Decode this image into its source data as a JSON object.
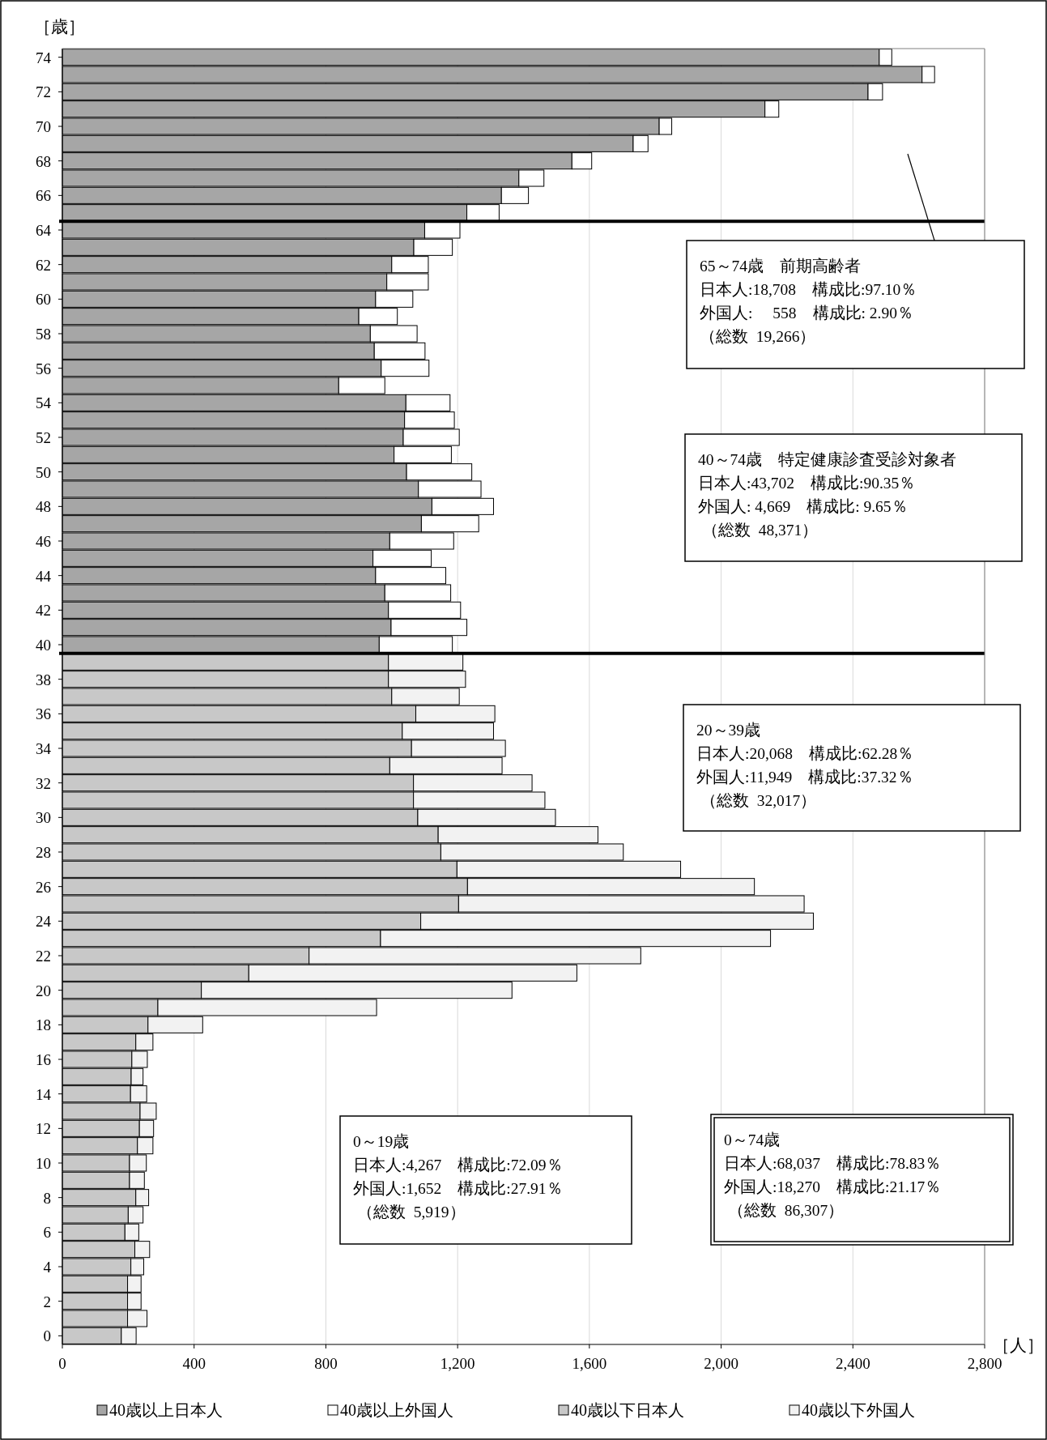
{
  "chart_data": {
    "type": "bar",
    "orientation": "horizontal",
    "stacked": true,
    "xlabel": "［人］",
    "ylabel": "［歳］",
    "x": [
      0,
      1,
      2,
      3,
      4,
      5,
      6,
      7,
      8,
      9,
      10,
      11,
      12,
      13,
      14,
      15,
      16,
      17,
      18,
      19,
      20,
      21,
      22,
      23,
      24,
      25,
      26,
      27,
      28,
      29,
      30,
      31,
      32,
      33,
      34,
      35,
      36,
      37,
      38,
      39,
      40,
      41,
      42,
      43,
      44,
      45,
      46,
      47,
      48,
      49,
      50,
      51,
      52,
      53,
      54,
      55,
      56,
      57,
      58,
      59,
      60,
      61,
      62,
      63,
      64,
      65,
      66,
      67,
      68,
      69,
      70,
      71,
      72,
      73,
      74
    ],
    "xlim": [
      0,
      2800
    ],
    "xticks": [
      0,
      400,
      800,
      {
        "value": 1200,
        "label": "1,200"
      },
      {
        "value": 1600,
        "label": "1,600"
      },
      {
        "value": 2000,
        "label": "2,000"
      },
      {
        "value": 2400,
        "label": "2,400"
      },
      {
        "value": 2800,
        "label": "2,800"
      }
    ],
    "ylim": [
      -0.5,
      74.5
    ],
    "yticks": [
      0,
      2,
      4,
      6,
      8,
      10,
      12,
      14,
      16,
      18,
      20,
      22,
      24,
      26,
      28,
      30,
      32,
      34,
      36,
      38,
      40,
      42,
      44,
      46,
      48,
      50,
      52,
      54,
      56,
      58,
      60,
      62,
      64,
      66,
      68,
      70,
      72,
      74
    ],
    "grid": "x",
    "legend": "bottom",
    "series": [
      {
        "name": "40歳以上日本人",
        "color": "#a6a6a6",
        "values": [
          null,
          null,
          null,
          null,
          null,
          null,
          null,
          null,
          null,
          null,
          null,
          null,
          null,
          null,
          null,
          null,
          null,
          null,
          null,
          null,
          null,
          null,
          null,
          null,
          null,
          null,
          null,
          null,
          null,
          null,
          null,
          null,
          null,
          null,
          null,
          null,
          null,
          null,
          null,
          null,
          962,
          998,
          990,
          979,
          951,
          943,
          994,
          1090,
          1122,
          1081,
          1045,
          1007,
          1035,
          1039,
          1043,
          839,
          968,
          947,
          935,
          900,
          951,
          985,
          1000,
          1067,
          1100,
          1228,
          1333,
          1386,
          1547,
          1733,
          1812,
          2133,
          2446,
          2610,
          2480
        ]
      },
      {
        "name": "40歳以上外国人",
        "color": "#ffffff",
        "values": [
          null,
          null,
          null,
          null,
          null,
          null,
          null,
          null,
          null,
          null,
          null,
          null,
          null,
          null,
          null,
          null,
          null,
          null,
          null,
          null,
          null,
          null,
          null,
          null,
          null,
          null,
          null,
          null,
          null,
          null,
          null,
          null,
          null,
          null,
          null,
          null,
          null,
          null,
          null,
          null,
          222,
          230,
          219,
          200,
          213,
          177,
          194,
          174,
          187,
          190,
          198,
          174,
          170,
          151,
          134,
          140,
          145,
          154,
          142,
          117,
          113,
          126,
          111,
          117,
          107,
          98,
          82,
          76,
          60,
          45,
          38,
          42,
          44,
          38,
          38
        ]
      },
      {
        "name": "40歳以下日本人",
        "color": "#c8c8c8",
        "values": [
          179,
          198,
          198,
          198,
          208,
          220,
          190,
          200,
          223,
          204,
          204,
          228,
          234,
          236,
          207,
          209,
          211,
          223,
          260,
          290,
          422,
          566,
          749,
          966,
          1088,
          1203,
          1230,
          1198,
          1149,
          1141,
          1079,
          1066,
          1066,
          994,
          1060,
          1032,
          1073,
          1000,
          990,
          990,
          null,
          null,
          null,
          null,
          null,
          null,
          null,
          null,
          null,
          null,
          null,
          null,
          null,
          null,
          null,
          null,
          null,
          null,
          null,
          null,
          null,
          null,
          null,
          null,
          null,
          null,
          null,
          null,
          null,
          null,
          null,
          null,
          null,
          null,
          null
        ]
      },
      {
        "name": "40歳以下外国人",
        "color": "#f2f2f2",
        "values": [
          45,
          59,
          41,
          41,
          39,
          45,
          42,
          45,
          39,
          45,
          51,
          47,
          43,
          49,
          49,
          36,
          47,
          52,
          166,
          664,
          943,
          996,
          1007,
          1184,
          1192,
          1049,
          871,
          679,
          554,
          485,
          418,
          399,
          360,
          341,
          285,
          277,
          240,
          205,
          234,
          226,
          null,
          null,
          null,
          null,
          null,
          null,
          null,
          null,
          null,
          null,
          null,
          null,
          null,
          null,
          null,
          null,
          null,
          null,
          null,
          null,
          null,
          null,
          null,
          null,
          null,
          null,
          null,
          null,
          null,
          null,
          null,
          null,
          null,
          null,
          null
        ]
      }
    ],
    "ref_lines": [
      {
        "axis": "y",
        "value": 64.5,
        "color": "#000000"
      },
      {
        "axis": "y",
        "value": 39.5,
        "color": "#000000"
      }
    ],
    "annotations": [
      "65～74歳　前期高齢者",
      "日本人:18,708　構成比:97.10％",
      "外国人:　 558　構成比: 2.90％",
      "（総数  19,266）",
      "40～74歳　特定健康診査受診対象者",
      "日本人:43,702　構成比:90.35％",
      "外国人: 4,669　構成比: 9.65％",
      " （総数  48,371）",
      "20～39歳",
      "日本人:20,068　構成比:62.28％",
      "外国人:11,949　構成比:37.32％",
      " （総数  32,017）",
      "0～19歳",
      "日本人:4,267　構成比:72.09％",
      "外国人:1,652　構成比:27.91％",
      " （総数  5,919）",
      "0～74歳",
      "日本人:68,037　構成比:78.83％",
      "外国人:18,270　構成比:21.17％",
      " （総数  86,307）"
    ]
  }
}
